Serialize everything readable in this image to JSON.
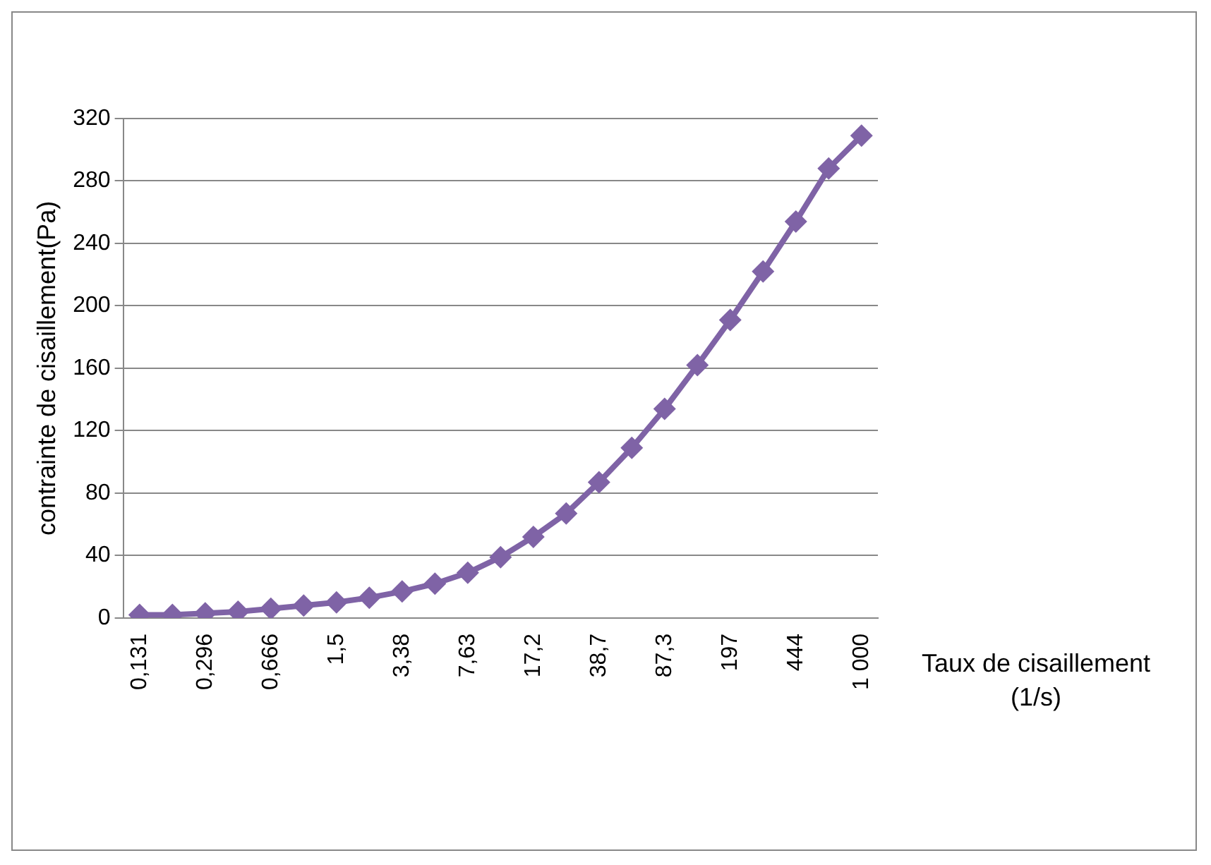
{
  "chart_data": {
    "type": "line",
    "xlabel": "Taux de cisaillement (1/s)",
    "ylabel": "contrainte de cisaillement(Pa)",
    "categories": [
      "0,131",
      null,
      "0,296",
      null,
      "0,666",
      null,
      "1,5",
      null,
      "3,38",
      null,
      "7,63",
      null,
      "17,2",
      null,
      "38,7",
      null,
      "87,3",
      null,
      "197",
      null,
      "444",
      null,
      "1 000"
    ],
    "series": [
      {
        "color": "#7f63a6",
        "values": [
          2,
          2,
          3,
          4,
          6,
          8,
          10,
          13,
          17,
          22,
          29,
          39,
          52,
          67,
          87,
          109,
          134,
          162,
          191,
          222,
          254,
          288,
          309
        ]
      }
    ],
    "ylim": [
      0,
      320
    ],
    "yticks": [
      0,
      40,
      80,
      120,
      160,
      200,
      240,
      280,
      320
    ],
    "grid": "y",
    "legend": false,
    "marker": "diamond",
    "line_style": "solid"
  }
}
